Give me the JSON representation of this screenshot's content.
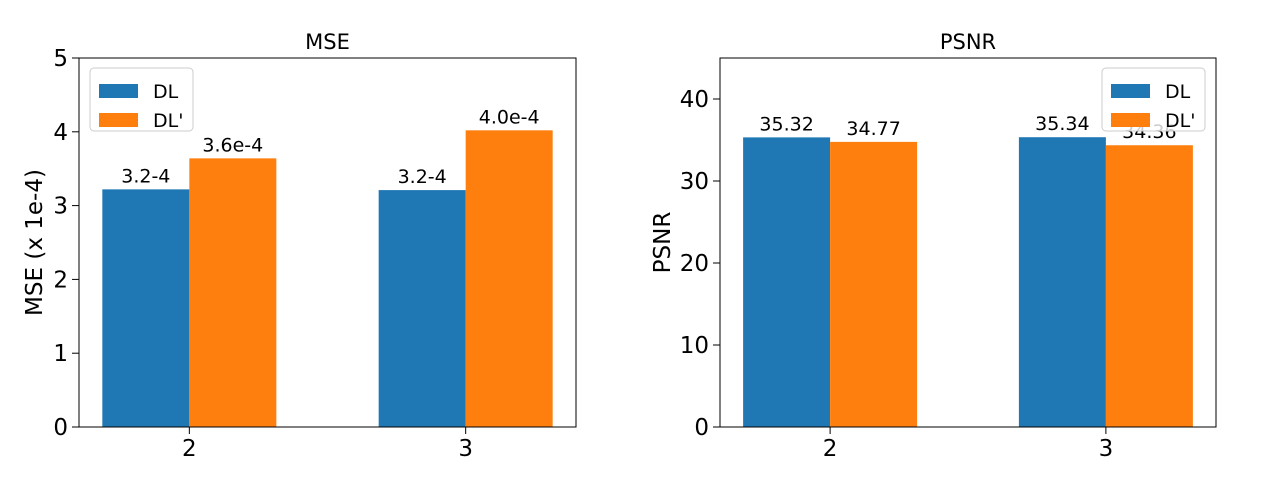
{
  "chart_data": [
    {
      "type": "bar",
      "title": "MSE",
      "xlabel": "",
      "ylabel": "MSE (x 1e-4)",
      "categories": [
        "2",
        "3"
      ],
      "ylim": [
        0,
        5
      ],
      "yticks": [
        "0",
        "1",
        "2",
        "3",
        "4",
        "5"
      ],
      "legend_position": "top-left",
      "grid": false,
      "series": [
        {
          "name": "DL",
          "color": "#1f77b4",
          "values": [
            3.22,
            3.21
          ],
          "labels": [
            "3.2-4",
            "3.2-4"
          ]
        },
        {
          "name": "DL'",
          "color": "#ff7f0e",
          "values": [
            3.64,
            4.02
          ],
          "labels": [
            "3.6e-4",
            "4.0e-4"
          ]
        }
      ]
    },
    {
      "type": "bar",
      "title": "PSNR",
      "xlabel": "",
      "ylabel": "PSNR",
      "categories": [
        "2",
        "3"
      ],
      "ylim": [
        0,
        45
      ],
      "yticks": [
        "0",
        "10",
        "20",
        "30",
        "40"
      ],
      "legend_position": "top-right",
      "grid": false,
      "series": [
        {
          "name": "DL",
          "color": "#1f77b4",
          "values": [
            35.32,
            35.34
          ],
          "labels": [
            "35.32",
            "35.34"
          ]
        },
        {
          "name": "DL'",
          "color": "#ff7f0e",
          "values": [
            34.77,
            34.36
          ],
          "labels": [
            "34.77",
            "34.36"
          ]
        }
      ]
    }
  ]
}
